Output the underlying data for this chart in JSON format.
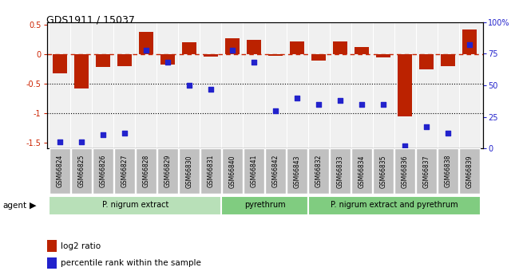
{
  "title": "GDS1911 / 15037",
  "samples": [
    "GSM66824",
    "GSM66825",
    "GSM66826",
    "GSM66827",
    "GSM66828",
    "GSM66829",
    "GSM66830",
    "GSM66831",
    "GSM66840",
    "GSM66841",
    "GSM66842",
    "GSM66843",
    "GSM66832",
    "GSM66833",
    "GSM66834",
    "GSM66835",
    "GSM66836",
    "GSM66837",
    "GSM66838",
    "GSM66839"
  ],
  "log2_ratio": [
    -0.32,
    -0.58,
    -0.22,
    -0.2,
    0.38,
    -0.17,
    0.2,
    -0.04,
    0.27,
    0.25,
    -0.02,
    0.22,
    -0.1,
    0.22,
    0.13,
    -0.05,
    -1.05,
    -0.25,
    -0.2,
    0.42
  ],
  "percentile_rank": [
    5,
    5,
    11,
    12,
    78,
    68,
    50,
    47,
    78,
    68,
    30,
    40,
    35,
    38,
    35,
    35,
    2,
    17,
    12,
    82
  ],
  "groups": [
    {
      "label": "P. nigrum extract",
      "start": 0,
      "end": 7,
      "color": "#b8e0b8"
    },
    {
      "label": "pyrethrum",
      "start": 8,
      "end": 11,
      "color": "#80cc80"
    },
    {
      "label": "P. nigrum extract and pyrethrum",
      "start": 12,
      "end": 19,
      "color": "#80cc80"
    }
  ],
  "bar_color": "#bb2200",
  "dot_color": "#2222cc",
  "ref_line_color": "#cc2200",
  "ylim_left": [
    -1.6,
    0.55
  ],
  "ylim_right": [
    0,
    100
  ],
  "legend_red": "log2 ratio",
  "legend_blue": "percentile rank within the sample",
  "agent_label": "agent",
  "label_box_color": "#c0c0c0",
  "plot_bg_color": "#f0f0f0"
}
